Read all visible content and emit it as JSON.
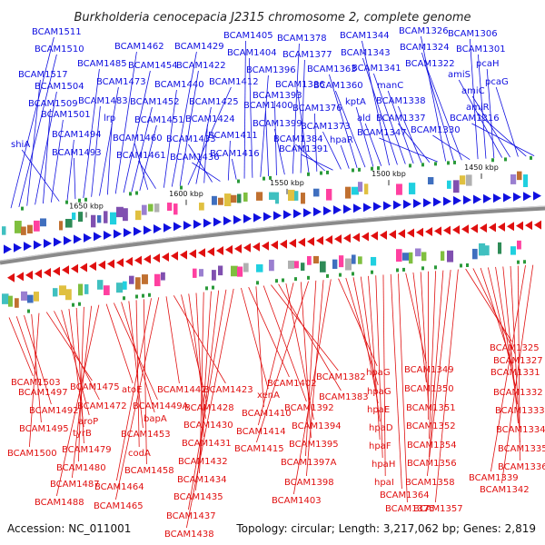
{
  "title": "Burkholderia cenocepacia J2315 chromosome 2, complete genome",
  "footer": {
    "accession": "Accession: NC_011001",
    "summary": "Topology: circular; Length: 3,217,062 bp; Genes: 2,819"
  },
  "colors": {
    "forward_strand": "#1010e0",
    "reverse_strand": "#e01010",
    "backbone": "#888888",
    "feature_palette": [
      "#2e8b57",
      "#7fbf3f",
      "#3f6fbf",
      "#9a7fd0",
      "#40c0c0",
      "#20d0e0",
      "#c07030",
      "#8050b0",
      "#b0b0b0",
      "#e0c040",
      "#ff40a0"
    ]
  },
  "scale_ticks": [
    "1650 kbp",
    "1600 kbp",
    "1550 kbp",
    "1500 kbp",
    "1450 kbp"
  ],
  "forward_genes": [
    "BCAM1511",
    "BCAM1510",
    "BCAM1517",
    "BCAM1504",
    "BCAM1509",
    "BCAM1501",
    "shiA",
    "BCAM1494",
    "BCAM1493",
    "BCAM1485",
    "BCAM1483",
    "BCAM1473",
    "lrp",
    "BCAM1462",
    "BCAM1454",
    "BCAM1452",
    "BCAM1451",
    "BCAM1460",
    "BCAM1461",
    "BCAM1440",
    "BCAM1429",
    "BCAM1422",
    "BCAM1412",
    "BCAM1425",
    "BCAM1424",
    "BCAM1433",
    "BCAM1436",
    "BCAM1411",
    "BCAM1416",
    "BCAM1405",
    "BCAM1404",
    "BCAM1396",
    "BCAM1400",
    "BCAM1393",
    "BCAM1399",
    "BCAM1378",
    "BCAM1377",
    "BCAM1386",
    "BCAM1376",
    "BCAM1384",
    "BCAM1391",
    "BCAM1373",
    "hpaR",
    "BCAM1363",
    "BCAM1360",
    "kptA",
    "ald",
    "BCAM1344",
    "BCAM1343",
    "BCAM1341",
    "manC",
    "BCAM1338",
    "BCAM1337",
    "BCAM1347",
    "BCAM1326",
    "BCAM1324",
    "BCAM1322",
    "BCAM1330",
    "BCAM1306",
    "BCAM1301",
    "pcaH",
    "amiS",
    "amiC",
    "pcaG",
    "amiR",
    "BCAM1316"
  ],
  "reverse_genes": [
    "BCAM1503",
    "BCAM1497",
    "BCAM1492",
    "BCAM1495",
    "BCAM1500",
    "BCAM1475",
    "BCAM1472",
    "aroP",
    "tyrB",
    "BCAM1479",
    "BCAM1480",
    "BCAM1487",
    "BCAM1488",
    "atoE",
    "BCAM1449A",
    "bapA",
    "BCAM1453",
    "codA",
    "BCAM1458",
    "BCAM1464",
    "BCAM1465",
    "BCAM1442",
    "BCAM1423",
    "BCAM1428",
    "BCAM1430",
    "BCAM1431",
    "BCAM1432",
    "BCAM1434",
    "BCAM1435",
    "BCAM1437",
    "BCAM1438",
    "xenA",
    "BCAM1402",
    "BCAM1410",
    "BCAM1392",
    "BCAM1382",
    "BCAM1383",
    "BCAM1394",
    "BCAM1414",
    "BCAM1395",
    "BCAM1415",
    "BCAM1397A",
    "BCAM1398",
    "BCAM1403",
    "hpaG",
    "hpaG",
    "hpaE",
    "hpaD",
    "hpaF",
    "hpaH",
    "hpaI",
    "BCAM1364",
    "BCAM1375",
    "BCAM1349",
    "BCAM1350",
    "BCAM1351",
    "BCAM1352",
    "BCAM1354",
    "BCAM1356",
    "BCAM1358",
    "BCAM1357",
    "BCAM1325",
    "BCAM1327",
    "BCAM1331",
    "BCAM1332",
    "BCAM1333",
    "BCAM1334",
    "BCAM1335",
    "BCAM1336",
    "BCAM1339",
    "BCAM1342"
  ]
}
